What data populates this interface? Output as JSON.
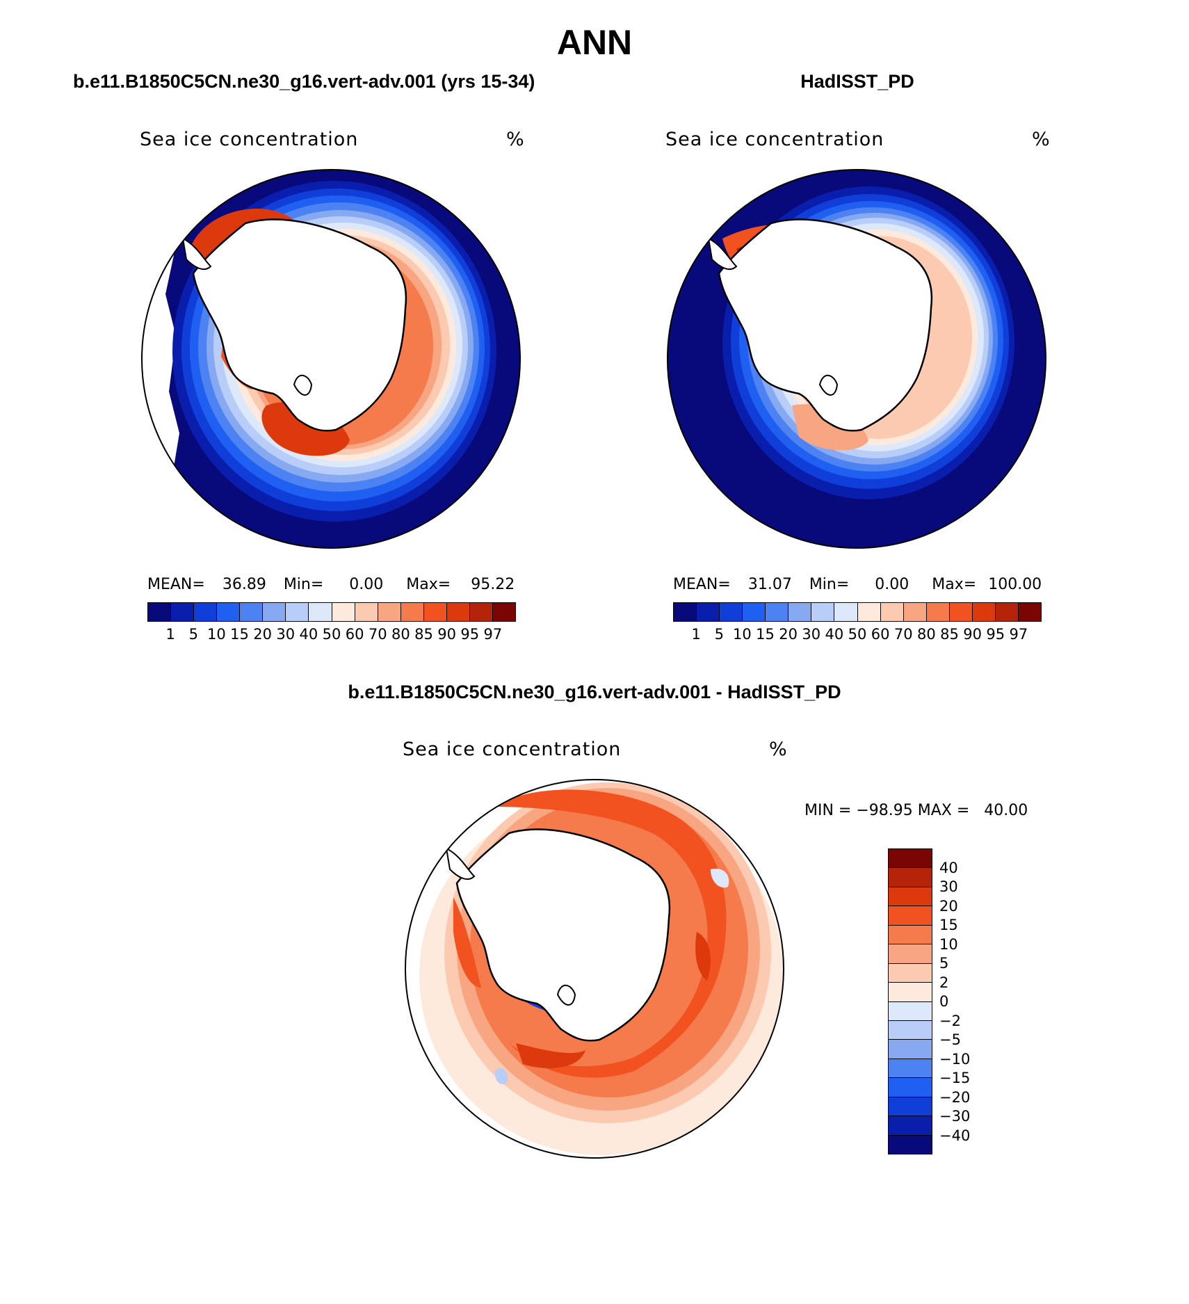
{
  "main_title": "ANN",
  "panels": {
    "model": {
      "case_title": "b.e11.B1850C5CN.ne30_g16.vert-adv.001 (yrs 15-34)",
      "field": "Sea ice concentration",
      "unit": "%",
      "stats": {
        "mean_label": "MEAN=",
        "mean": "36.89",
        "min_label": "Min=",
        "min": "0.00",
        "max_label": "Max=",
        "max": "95.22"
      }
    },
    "obs": {
      "case_title": "HadISST_PD",
      "field": "Sea ice concentration",
      "unit": "%",
      "stats": {
        "mean_label": "MEAN=",
        "mean": "31.07",
        "min_label": "Min=",
        "min": "0.00",
        "max_label": "Max=",
        "max": "100.00"
      }
    },
    "diff": {
      "case_title": "b.e11.B1850C5CN.ne30_g16.vert-adv.001 - HadISST_PD",
      "field": "Sea ice concentration",
      "unit": "%",
      "minmax": "MIN = −98.95 MAX =   40.00"
    }
  },
  "colorbars": {
    "concentration": {
      "levels": [
        "1",
        "5",
        "10",
        "15",
        "20",
        "30",
        "40",
        "50",
        "60",
        "70",
        "80",
        "85",
        "90",
        "95",
        "97"
      ],
      "colors": [
        "#08097a",
        "#0a1eae",
        "#0f3fd8",
        "#1f5ff2",
        "#4c82f2",
        "#86a9f2",
        "#b8cdf7",
        "#dde9fb",
        "#fdeadc",
        "#fbcab0",
        "#f8a682",
        "#f57a4c",
        "#f2521f",
        "#dc3a0c",
        "#b4230a",
        "#7a0604"
      ]
    },
    "difference": {
      "levels": [
        "40",
        "30",
        "20",
        "15",
        "10",
        "5",
        "2",
        "0",
        "−2",
        "−5",
        "−10",
        "−15",
        "−20",
        "−30",
        "−40"
      ],
      "colors": [
        "#7a0604",
        "#b4230a",
        "#dc3a0c",
        "#f2521f",
        "#f57a4c",
        "#f8a682",
        "#fbcab0",
        "#fdeadc",
        "#dde9fb",
        "#b8cdf7",
        "#86a9f2",
        "#4c82f2",
        "#1f5ff2",
        "#0f3fd8",
        "#0a1eae",
        "#08097a"
      ]
    }
  }
}
